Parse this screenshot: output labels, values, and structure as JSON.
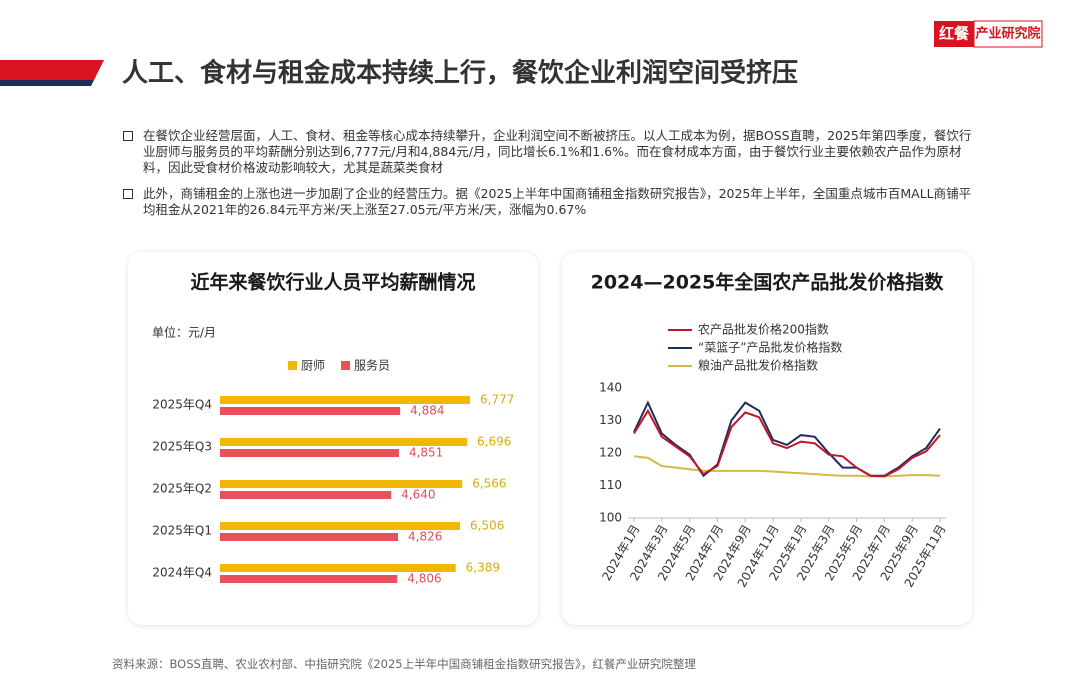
{
  "header": {
    "title": "人工、食材与租金成本持续上行，餐饮企业利润空间受挤压",
    "logo": {
      "brand": "红餐",
      "name": "产业研究院"
    }
  },
  "bullets": [
    "在餐饮企业经营层面，人工、食材、租金等核心成本持续攀升，企业利润空间不断被挤压。以人工成本为例，据BOSS直聘，2025年第四季度，餐饮行业厨师与服务员的平均薪酬分别达到6,777元/月和4,884元/月，同比增长6.1%和1.6%。而在食材成本方面，由于餐饮行业主要依赖农产品作为原材料，因此受食材价格波动影响较大，尤其是蔬菜类食材",
    "此外，商铺租金的上涨也进一步加剧了企业的经营压力。据《2025上半年中国商铺租金指数研究报告》，2025年上半年，全国重点城市百MALL商铺平均租金从2021年的26.84元平方米/天上涨至27.05元/平方米/天，涨幅为0.67%"
  ],
  "chart_data": [
    {
      "type": "bar",
      "title": "近年来餐饮行业人员平均薪酬情况",
      "unit": "单位：元/月",
      "categories": [
        "2025年Q4",
        "2025年Q3",
        "2025年Q2",
        "2025年Q1",
        "2024年Q4"
      ],
      "series": [
        {
          "name": "厨师",
          "color": "#f2b705",
          "label_color": "#d9ac10",
          "values": [
            6777,
            6696,
            6566,
            6506,
            6389
          ],
          "value_labels": [
            "6,777",
            "6,696",
            "6,566",
            "6,506",
            "6,389"
          ]
        },
        {
          "name": "服务员",
          "color": "#e9505a",
          "label_color": "#e2505a",
          "values": [
            4884,
            4851,
            4640,
            4826,
            4806
          ],
          "value_labels": [
            "4,884",
            "4,851",
            "4,640",
            "4,826",
            "4,806"
          ]
        }
      ]
    },
    {
      "type": "line",
      "title": "2024—2025年全国农产品批发价格指数",
      "categories": [
        "2024年1月",
        null,
        "2024年3月",
        null,
        "2024年5月",
        null,
        "2024年7月",
        null,
        "2024年9月",
        null,
        "2024年11月",
        null,
        "2025年1月",
        null,
        "2025年3月",
        null,
        "2025年5月",
        null,
        "2025年7月",
        null,
        "2025年9月",
        null,
        "2025年11月"
      ],
      "ylim": [
        100,
        140
      ],
      "yticks": [
        100,
        110,
        120,
        130,
        140
      ],
      "series": [
        {
          "name": "农产品批发价格200指数",
          "color": "#c0152a",
          "values": [
            126,
            133,
            125,
            122,
            119,
            113.5,
            116,
            128,
            132.5,
            131,
            123,
            121.5,
            123.5,
            123,
            119.5,
            119,
            115.5,
            113,
            112.8,
            115,
            118.5,
            120.5,
            125.5
          ]
        },
        {
          "name": "“菜篮子”产品批发价格指数",
          "color": "#1f2d5a",
          "values": [
            126.5,
            135.5,
            126,
            122.5,
            119.5,
            113,
            116.5,
            130,
            135.5,
            133,
            124,
            122.5,
            125.5,
            125,
            120,
            115.5,
            115.5,
            113,
            113,
            115.5,
            119,
            121.5,
            127.5
          ]
        },
        {
          "name": "粮油产品批发价格指数",
          "color": "#d4b84a",
          "values": [
            119,
            118.5,
            116,
            115.5,
            115,
            114.5,
            114.5,
            114.5,
            114.5,
            114.5,
            114.3,
            114,
            113.8,
            113.5,
            113.2,
            113,
            113,
            112.8,
            112.8,
            113,
            113.2,
            113.2,
            113
          ]
        }
      ]
    }
  ],
  "source": "资料来源：BOSS直聘、农业农村部、中指研究院《2025上半年中国商铺租金指数研究报告》，红餐产业研究院整理"
}
